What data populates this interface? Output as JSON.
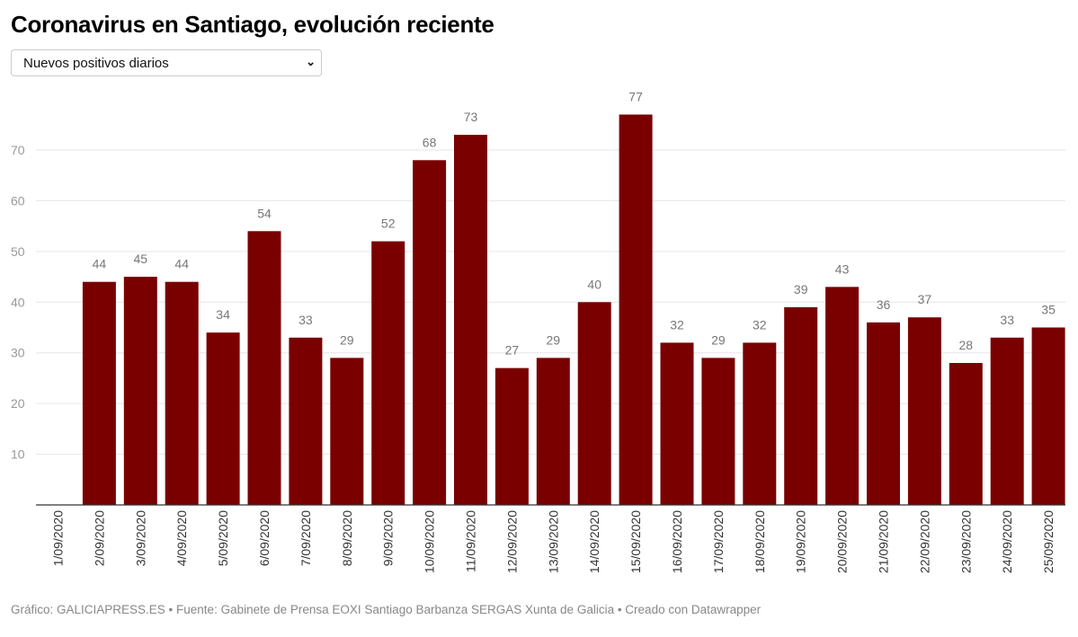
{
  "title": "Coronavirus en Santiago, evolución reciente",
  "selector": {
    "value": "Nuevos positivos diarios",
    "icon": "chevron-down-icon"
  },
  "footer": "Gráfico: GALICIAPRESS.ES • Fuente: Gabinete de Prensa EOXI Santiago Barbanza SERGAS Xunta de Galicia • Creado con Datawrapper",
  "chart_data": {
    "type": "bar",
    "title": "",
    "categories": [
      "1/09/2020",
      "2/09/2020",
      "3/09/2020",
      "4/09/2020",
      "5/09/2020",
      "6/09/2020",
      "7/09/2020",
      "8/09/2020",
      "9/09/2020",
      "10/09/2020",
      "11/09/2020",
      "12/09/2020",
      "13/09/2020",
      "14/09/2020",
      "15/09/2020",
      "16/09/2020",
      "17/09/2020",
      "18/09/2020",
      "19/09/2020",
      "20/09/2020",
      "21/09/2020",
      "22/09/2020",
      "23/09/2020",
      "24/09/2020",
      "25/09/2020"
    ],
    "values": [
      null,
      44,
      45,
      44,
      34,
      54,
      33,
      29,
      52,
      68,
      73,
      27,
      29,
      40,
      77,
      32,
      29,
      32,
      39,
      43,
      36,
      37,
      28,
      33,
      35
    ],
    "yticks": [
      10,
      20,
      30,
      40,
      50,
      60,
      70
    ],
    "ylim": [
      0,
      77
    ],
    "grid": true,
    "bar_color": "#7a0000"
  }
}
